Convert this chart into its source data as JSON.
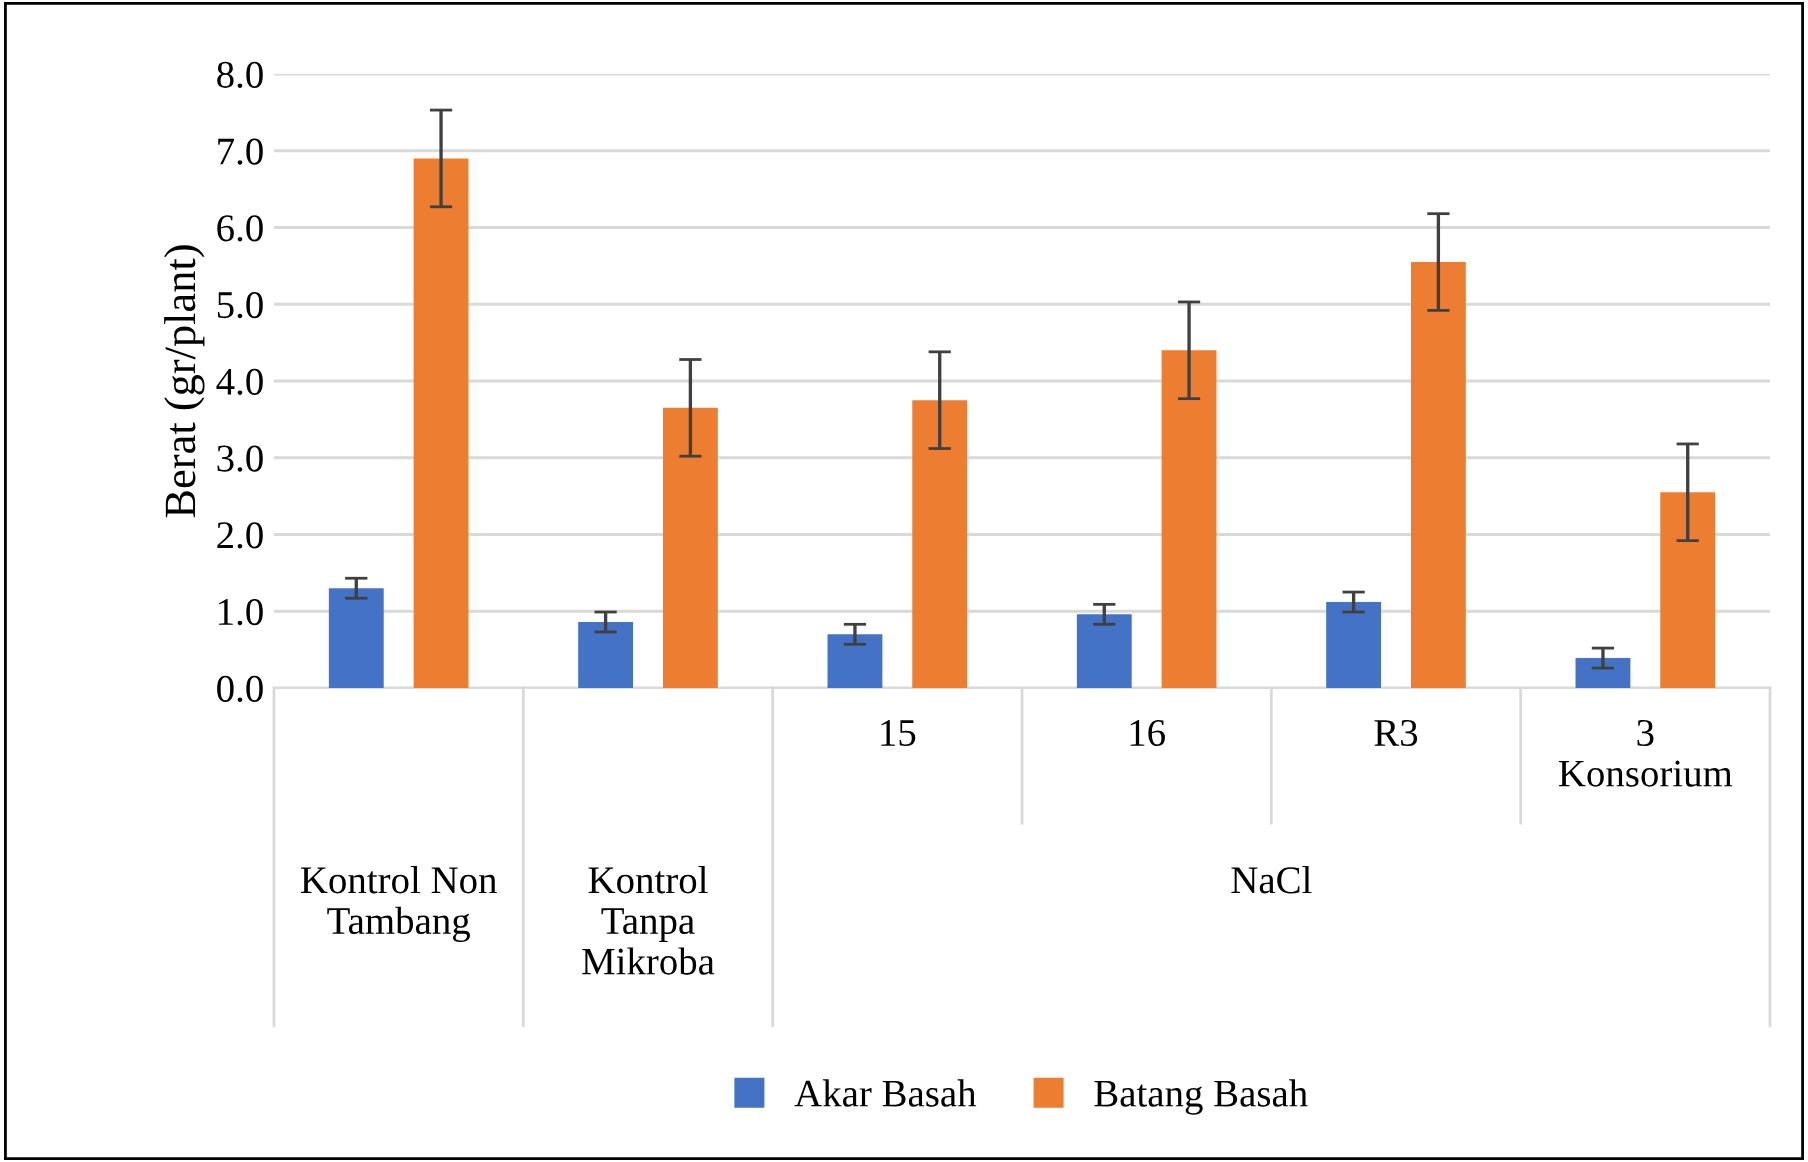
{
  "chart_data": {
    "type": "bar",
    "ylabel": "Berat (gr/plant)",
    "categories": [
      "Kontrol Non Tambang",
      "Kontrol Tanpa Mikroba",
      "15",
      "16",
      "R3",
      "3 Konsorium"
    ],
    "series": [
      {
        "name": "Akar Basah",
        "color": "#4472c4",
        "values": [
          1.3,
          0.86,
          0.7,
          0.96,
          1.12,
          0.39
        ],
        "errors": [
          0.13,
          0.13,
          0.13,
          0.13,
          0.13,
          0.13
        ]
      },
      {
        "name": "Batang Basah",
        "color": "#ed7d31",
        "values": [
          6.9,
          3.65,
          3.75,
          4.4,
          5.55,
          2.55
        ],
        "errors": [
          0.63,
          0.63,
          0.63,
          0.63,
          0.63,
          0.63
        ]
      }
    ],
    "annotations": [
      "NaCl"
    ],
    "ylim": [
      0,
      8
    ],
    "yticks": [
      {
        "value": 0,
        "label": "0.0"
      },
      {
        "value": 1,
        "label": "1.0"
      },
      {
        "value": 2,
        "label": "2.0"
      },
      {
        "value": 3,
        "label": "3.0"
      },
      {
        "value": 4,
        "label": "4.0"
      },
      {
        "value": 5,
        "label": "5.0"
      },
      {
        "value": 6,
        "label": "6.0"
      },
      {
        "value": 7,
        "label": "7.0"
      },
      {
        "value": 8,
        "label": "8.0"
      }
    ],
    "grid": "y",
    "legend": "bottom"
  }
}
